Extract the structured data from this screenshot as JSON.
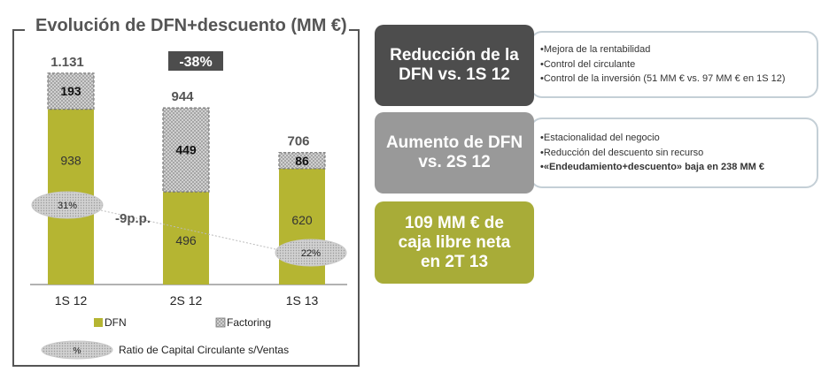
{
  "chart_data": {
    "type": "bar",
    "title": "Evolución de DFN+descuento (MM €)",
    "categories": [
      "1S 12",
      "2S 12",
      "1S 13"
    ],
    "series": [
      {
        "name": "DFN",
        "values": [
          938,
          496,
          620
        ],
        "color": "#b5b532"
      },
      {
        "name": "Factoring",
        "values": [
          193,
          449,
          86
        ],
        "color": "#cfcfcf"
      }
    ],
    "totals": [
      "1.131",
      "944",
      "706"
    ],
    "dfn_labels": [
      "938",
      "496",
      "620"
    ],
    "factoring_labels": [
      "193",
      "449",
      "86"
    ],
    "ratio": {
      "name": "Ratio de Capital Circulante s/Ventas",
      "values": [
        "31%",
        "",
        "22%"
      ],
      "symbol": "%"
    },
    "annotations": {
      "change_pct": "-38%",
      "change_pp": "-9p.p."
    },
    "ylim": [
      0,
      1200
    ],
    "legend_position": "bottom"
  },
  "panels": [
    {
      "heading": "Reducción de la DFN vs. 1S 12",
      "bullets": [
        "•Mejora de la rentabilidad",
        "•Control del circulante",
        "•Control de la inversión (51 MM € vs. 97 MM € en 1S 12)"
      ]
    },
    {
      "heading": "Aumento de DFN vs. 2S 12",
      "bullets": [
        "•Estacionalidad del negocio",
        "•Reducción del descuento sin recurso",
        "•«Endeudamiento+descuento» baja en 238 MM €"
      ]
    },
    {
      "heading": "109 MM € de caja libre neta en 2T 13",
      "bullets": []
    }
  ],
  "colors": {
    "dark": "#4d4d4d",
    "grey": "#999999",
    "olive": "#a8ac38",
    "border": "#c4cfd6"
  }
}
